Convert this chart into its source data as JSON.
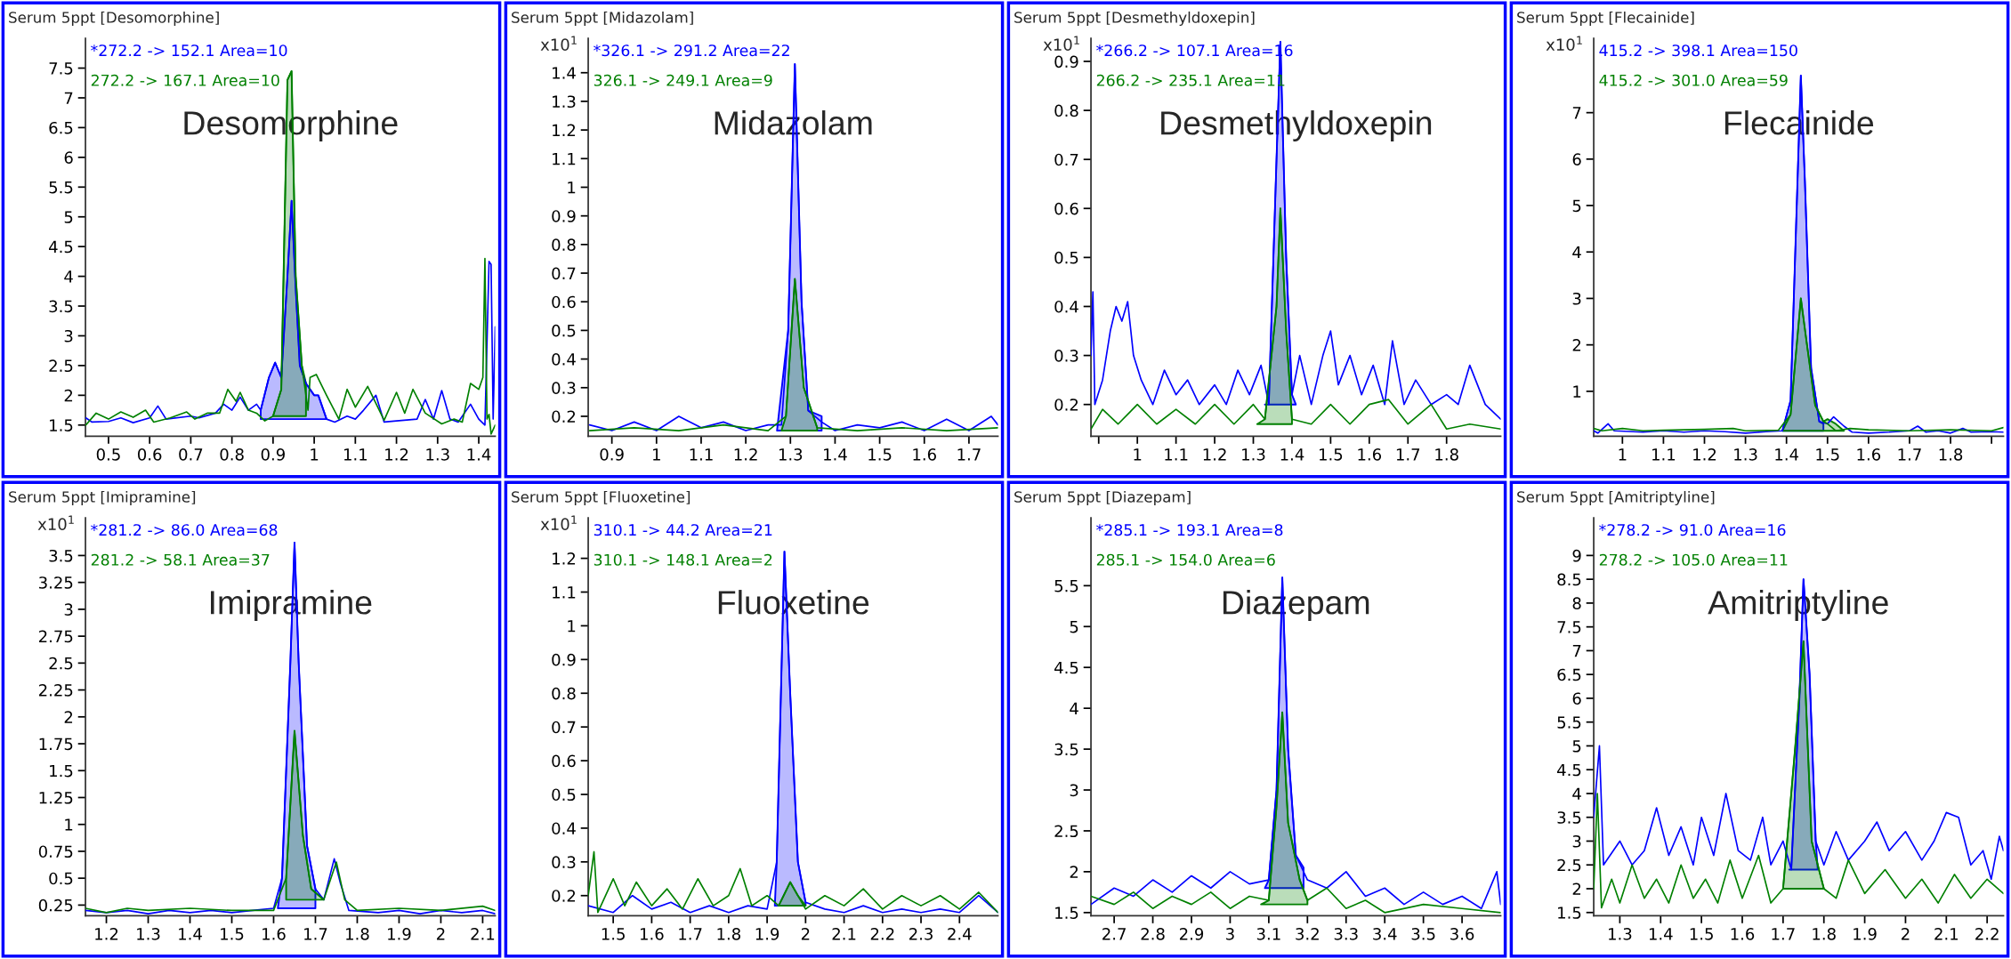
{
  "chart_data": [
    {
      "type": "line",
      "title": "Serum 5ppt [Desomorphine]",
      "legend": "top left",
      "annotations": [
        "Desomorphine"
      ],
      "xlim": [
        0.444,
        1.44
      ],
      "xticks": [
        0.5,
        0.6,
        0.7,
        0.8,
        0.9,
        1,
        1.1,
        1.2,
        1.3,
        1.4
      ],
      "ylim": [
        1.31,
        8.0
      ],
      "yticks": [
        1.5,
        2,
        2.5,
        3,
        3.5,
        4,
        4.5,
        5,
        5.5,
        6,
        6.5,
        7,
        7.5
      ],
      "series": [
        {
          "type": "line",
          "name": "*272.2 -> 152.1 Area=10",
          "color": "#0000ff",
          "x": [
            0.445,
            0.46,
            0.5,
            0.53,
            0.56,
            0.6,
            0.62,
            0.64,
            0.7,
            0.72,
            0.76,
            0.78,
            0.8,
            0.82,
            0.84,
            0.86,
            0.87,
            0.89,
            0.905,
            0.92,
            0.935,
            0.945,
            0.955,
            0.965,
            0.98,
            1.0,
            1.01,
            1.03,
            1.05,
            1.08,
            1.1,
            1.12,
            1.15,
            1.17,
            1.2,
            1.25,
            1.27,
            1.29,
            1.31,
            1.33,
            1.35,
            1.38,
            1.4,
            1.415,
            1.425,
            1.43,
            1.435,
            1.44
          ],
          "values": [
            1.62,
            1.55,
            1.56,
            1.62,
            1.54,
            1.62,
            1.82,
            1.6,
            1.65,
            1.62,
            1.7,
            1.85,
            1.75,
            1.97,
            1.75,
            1.85,
            1.75,
            2.3,
            2.55,
            2.3,
            4.0,
            5.27,
            3.8,
            2.5,
            2.2,
            2.0,
            2.0,
            1.6,
            1.55,
            1.65,
            1.6,
            1.75,
            2.0,
            1.55,
            1.57,
            1.6,
            1.93,
            1.6,
            2.08,
            1.6,
            1.55,
            1.85,
            1.6,
            1.5,
            4.25,
            4.2,
            1.6,
            3.15
          ]
        },
        {
          "type": "line",
          "name": "272.2 -> 167.1 Area=10",
          "color": "#008000",
          "x": [
            0.445,
            0.47,
            0.5,
            0.53,
            0.56,
            0.59,
            0.61,
            0.65,
            0.69,
            0.71,
            0.74,
            0.77,
            0.79,
            0.81,
            0.82,
            0.84,
            0.86,
            0.88,
            0.9,
            0.92,
            0.935,
            0.945,
            0.955,
            0.97,
            0.985,
            0.99,
            1.005,
            1.03,
            1.06,
            1.08,
            1.1,
            1.13,
            1.17,
            1.2,
            1.22,
            1.24,
            1.27,
            1.31,
            1.34,
            1.36,
            1.38,
            1.4,
            1.41,
            1.415,
            1.42,
            1.425,
            1.43,
            1.44
          ],
          "values": [
            1.5,
            1.7,
            1.6,
            1.72,
            1.63,
            1.75,
            1.55,
            1.62,
            1.72,
            1.6,
            1.7,
            1.7,
            2.1,
            1.9,
            2.05,
            1.75,
            1.7,
            1.57,
            1.65,
            2.1,
            7.3,
            7.45,
            4.0,
            2.5,
            1.75,
            2.3,
            2.35,
            2.0,
            1.6,
            2.1,
            1.8,
            2.15,
            1.58,
            2.05,
            1.7,
            2.1,
            1.7,
            1.52,
            1.6,
            1.55,
            2.2,
            2.1,
            2.3,
            4.3,
            1.6,
            1.68,
            1.35,
            1.5
          ]
        },
        {
          "type": "area",
          "color": "#0000ff",
          "x": [
            0.87,
            0.89,
            0.905,
            0.92,
            0.935,
            0.945,
            0.955,
            0.965,
            0.98,
            1.0,
            1.01,
            1.03
          ],
          "values": [
            1.75,
            2.3,
            2.55,
            2.3,
            4.0,
            5.27,
            3.8,
            2.5,
            2.2,
            2.0,
            2.0,
            1.6
          ]
        },
        {
          "type": "area",
          "color": "#008000",
          "x": [
            0.9,
            0.92,
            0.935,
            0.945,
            0.955,
            0.97,
            0.98
          ],
          "values": [
            1.65,
            2.1,
            7.3,
            7.45,
            4.0,
            2.5,
            2.2
          ]
        }
      ]
    },
    {
      "type": "line",
      "title": "Serum 5ppt [Midazolam]",
      "legend": "top left",
      "annotations": [
        "Midazolam",
        "x10$^{1}$"
      ],
      "xlim": [
        0.847,
        1.765
      ],
      "xticks": [
        0.9,
        1,
        1.1,
        1.2,
        1.3,
        1.4,
        1.5,
        1.6,
        1.7
      ],
      "ylim": [
        0.13,
        1.52
      ],
      "yticks": [
        0.2,
        0.3,
        0.4,
        0.5,
        0.6,
        0.7,
        0.8,
        0.9,
        1,
        1.1,
        1.2,
        1.3,
        1.4
      ],
      "series": [
        {
          "type": "line",
          "name": "*326.1 -> 291.2 Area=22",
          "color": "#0000ff",
          "x": [
            0.85,
            0.9,
            0.95,
            1.0,
            1.05,
            1.1,
            1.15,
            1.2,
            1.25,
            1.28,
            1.295,
            1.31,
            1.325,
            1.34,
            1.37,
            1.4,
            1.45,
            1.5,
            1.55,
            1.6,
            1.65,
            1.7,
            1.75,
            1.765
          ],
          "values": [
            0.17,
            0.15,
            0.18,
            0.15,
            0.2,
            0.16,
            0.18,
            0.15,
            0.17,
            0.17,
            0.5,
            1.43,
            0.6,
            0.22,
            0.18,
            0.15,
            0.17,
            0.16,
            0.18,
            0.15,
            0.19,
            0.15,
            0.2,
            0.17
          ]
        },
        {
          "type": "line",
          "name": "326.1 -> 249.1 Area=9",
          "color": "#008000",
          "x": [
            0.85,
            0.95,
            1.05,
            1.15,
            1.25,
            1.29,
            1.31,
            1.33,
            1.36,
            1.45,
            1.55,
            1.65,
            1.765
          ],
          "values": [
            0.15,
            0.16,
            0.15,
            0.17,
            0.15,
            0.2,
            0.68,
            0.3,
            0.16,
            0.15,
            0.16,
            0.15,
            0.16
          ]
        },
        {
          "type": "area",
          "color": "#0000ff",
          "x": [
            1.27,
            1.295,
            1.31,
            1.325,
            1.34,
            1.37
          ],
          "values": [
            0.15,
            0.5,
            1.43,
            0.6,
            0.22,
            0.2
          ]
        },
        {
          "type": "area",
          "color": "#008000",
          "x": [
            1.28,
            1.29,
            1.31,
            1.33,
            1.36
          ],
          "values": [
            0.15,
            0.2,
            0.68,
            0.3,
            0.16
          ]
        }
      ]
    },
    {
      "type": "line",
      "title": "Serum 5ppt [Desmethyldoxepin]",
      "legend": "top left",
      "annotations": [
        "Desmethyldoxepin",
        "x10$^{1}$"
      ],
      "xlim": [
        0.88,
        1.94
      ],
      "xticks": [
        {
          "value": 0.9,
          "label": null
        },
        1,
        1.1,
        1.2,
        1.3,
        1.4,
        1.5,
        1.6,
        1.7,
        1.8
      ],
      "ylim": [
        0.135,
        0.947
      ],
      "yticks": [
        0.2,
        0.3,
        0.4,
        0.5,
        0.6,
        0.7,
        0.8,
        0.9
      ],
      "series": [
        {
          "type": "line",
          "name": "*266.2 -> 107.1 Area=16",
          "color": "#0000ff",
          "x": [
            0.88,
            0.885,
            0.89,
            0.91,
            0.93,
            0.945,
            0.96,
            0.975,
            0.99,
            1.01,
            1.04,
            1.07,
            1.1,
            1.13,
            1.16,
            1.2,
            1.23,
            1.26,
            1.29,
            1.32,
            1.34,
            1.36,
            1.37,
            1.385,
            1.4,
            1.42,
            1.45,
            1.48,
            1.5,
            1.52,
            1.55,
            1.58,
            1.61,
            1.64,
            1.66,
            1.69,
            1.72,
            1.76,
            1.8,
            1.83,
            1.86,
            1.9,
            1.94
          ],
          "values": [
            0.3,
            0.43,
            0.2,
            0.25,
            0.35,
            0.4,
            0.37,
            0.41,
            0.3,
            0.25,
            0.2,
            0.27,
            0.22,
            0.25,
            0.2,
            0.24,
            0.2,
            0.27,
            0.22,
            0.28,
            0.2,
            0.7,
            0.94,
            0.5,
            0.22,
            0.3,
            0.2,
            0.3,
            0.35,
            0.24,
            0.3,
            0.22,
            0.28,
            0.2,
            0.33,
            0.2,
            0.25,
            0.2,
            0.22,
            0.2,
            0.28,
            0.2,
            0.17
          ]
        },
        {
          "type": "line",
          "name": "266.2 -> 235.1 Area=11",
          "color": "#008000",
          "x": [
            0.88,
            0.91,
            0.95,
            1.0,
            1.05,
            1.1,
            1.15,
            1.2,
            1.25,
            1.3,
            1.33,
            1.36,
            1.37,
            1.385,
            1.4,
            1.45,
            1.5,
            1.55,
            1.6,
            1.65,
            1.7,
            1.76,
            1.8,
            1.86,
            1.94
          ],
          "values": [
            0.15,
            0.19,
            0.16,
            0.2,
            0.16,
            0.19,
            0.16,
            0.2,
            0.16,
            0.2,
            0.17,
            0.4,
            0.6,
            0.35,
            0.17,
            0.16,
            0.2,
            0.16,
            0.2,
            0.21,
            0.16,
            0.2,
            0.15,
            0.16,
            0.15
          ]
        },
        {
          "type": "area",
          "color": "#0000ff",
          "x": [
            1.33,
            1.34,
            1.36,
            1.37,
            1.385,
            1.4,
            1.41
          ],
          "values": [
            0.2,
            0.2,
            0.7,
            0.94,
            0.5,
            0.22,
            0.2
          ]
        },
        {
          "type": "area",
          "color": "#008000",
          "x": [
            1.31,
            1.33,
            1.36,
            1.37,
            1.385,
            1.4
          ],
          "values": [
            0.16,
            0.17,
            0.4,
            0.6,
            0.35,
            0.17
          ]
        }
      ]
    },
    {
      "type": "line",
      "title": "Serum 5ppt [Flecainide]",
      "legend": "top left",
      "annotations": [
        "Flecainide",
        "x10$^{1}$"
      ],
      "xlim": [
        0.93,
        1.929
      ],
      "xticks": [
        1,
        1.1,
        1.2,
        1.3,
        1.4,
        1.5,
        1.6,
        1.7,
        1.8,
        {
          "value": 1.9,
          "label": null
        }
      ],
      "ylim": [
        0.03,
        8.6
      ],
      "yticks": [
        1,
        2,
        3,
        4,
        5,
        6,
        7
      ],
      "series": [
        {
          "type": "line",
          "name": "415.2 -> 398.1 Area=150",
          "color": "#0000ff",
          "x": [
            0.93,
            0.94,
            0.965,
            0.98,
            1.05,
            1.1,
            1.15,
            1.2,
            1.25,
            1.3,
            1.35,
            1.39,
            1.41,
            1.425,
            1.435,
            1.445,
            1.46,
            1.48,
            1.5,
            1.515,
            1.54,
            1.56,
            1.6,
            1.65,
            1.7,
            1.72,
            1.74,
            1.77,
            1.8,
            1.83,
            1.85,
            1.9,
            1.929
          ],
          "values": [
            0.15,
            0.1,
            0.3,
            0.15,
            0.12,
            0.15,
            0.12,
            0.15,
            0.13,
            0.1,
            0.13,
            0.15,
            0.8,
            5.0,
            7.8,
            5.5,
            1.5,
            0.35,
            0.3,
            0.45,
            0.25,
            0.12,
            0.1,
            0.12,
            0.15,
            0.25,
            0.12,
            0.15,
            0.1,
            0.2,
            0.12,
            0.13,
            0.12
          ]
        },
        {
          "type": "line",
          "name": "415.2 -> 301.0 Area=59",
          "color": "#008000",
          "x": [
            0.93,
            0.95,
            1.0,
            1.05,
            1.1,
            1.2,
            1.27,
            1.3,
            1.38,
            1.41,
            1.435,
            1.45,
            1.47,
            1.49,
            1.5,
            1.52,
            1.555,
            1.6,
            1.7,
            1.8,
            1.9,
            1.929
          ],
          "values": [
            0.2,
            0.15,
            0.2,
            0.15,
            0.16,
            0.18,
            0.2,
            0.15,
            0.16,
            0.5,
            3.0,
            2.0,
            0.7,
            0.35,
            0.3,
            0.15,
            0.2,
            0.17,
            0.15,
            0.17,
            0.15,
            0.22
          ]
        },
        {
          "type": "area",
          "color": "#0000ff",
          "x": [
            1.39,
            1.41,
            1.425,
            1.435,
            1.445,
            1.46,
            1.48,
            1.49
          ],
          "values": [
            0.15,
            0.8,
            5.0,
            7.8,
            5.5,
            1.5,
            0.35,
            0.3
          ]
        },
        {
          "type": "area",
          "color": "#008000",
          "x": [
            1.39,
            1.41,
            1.435,
            1.45,
            1.47,
            1.49,
            1.5,
            1.52,
            1.54
          ],
          "values": [
            0.15,
            0.5,
            3.0,
            2.0,
            0.7,
            0.35,
            0.4,
            0.3,
            0.15
          ]
        }
      ]
    },
    {
      "type": "line",
      "title": "Serum 5ppt [Imipramine]",
      "legend": "top left",
      "annotations": [
        "Imipramine",
        "x10$^{1}$"
      ],
      "xlim": [
        1.15,
        2.13
      ],
      "xticks": [
        1.2,
        1.3,
        1.4,
        1.5,
        1.6,
        1.7,
        1.8,
        1.9,
        2,
        2.1
      ],
      "ylim": [
        0.15,
        3.85
      ],
      "yticks": [
        0.25,
        0.5,
        0.75,
        1,
        1.25,
        1.5,
        1.75,
        2,
        2.25,
        2.5,
        2.75,
        3,
        3.25,
        3.5
      ],
      "series": [
        {
          "type": "line",
          "name": "*281.2 -> 86.0 Area=68",
          "color": "#0000ff",
          "x": [
            1.15,
            1.2,
            1.25,
            1.3,
            1.35,
            1.4,
            1.45,
            1.5,
            1.55,
            1.6,
            1.62,
            1.64,
            1.65,
            1.66,
            1.68,
            1.7,
            1.72,
            1.745,
            1.76,
            1.78,
            1.85,
            1.9,
            1.95,
            2.0,
            2.05,
            2.1,
            2.13
          ],
          "values": [
            0.2,
            0.18,
            0.2,
            0.17,
            0.2,
            0.18,
            0.2,
            0.18,
            0.2,
            0.22,
            0.5,
            2.5,
            3.62,
            2.5,
            0.8,
            0.4,
            0.3,
            0.68,
            0.45,
            0.2,
            0.18,
            0.2,
            0.17,
            0.2,
            0.18,
            0.2,
            0.17
          ]
        },
        {
          "type": "line",
          "name": "281.2 -> 58.1 Area=37",
          "color": "#008000",
          "x": [
            1.15,
            1.2,
            1.25,
            1.3,
            1.4,
            1.5,
            1.6,
            1.63,
            1.65,
            1.67,
            1.69,
            1.72,
            1.75,
            1.77,
            1.8,
            1.9,
            2.0,
            2.1,
            2.13
          ],
          "values": [
            0.22,
            0.18,
            0.22,
            0.2,
            0.22,
            0.2,
            0.2,
            0.5,
            1.87,
            0.9,
            0.4,
            0.3,
            0.65,
            0.3,
            0.2,
            0.22,
            0.2,
            0.24,
            0.2
          ]
        },
        {
          "type": "area",
          "color": "#0000ff",
          "x": [
            1.61,
            1.62,
            1.64,
            1.65,
            1.66,
            1.68,
            1.7
          ],
          "values": [
            0.22,
            0.5,
            2.5,
            3.62,
            2.5,
            0.8,
            0.4
          ]
        },
        {
          "type": "area",
          "color": "#008000",
          "x": [
            1.63,
            1.65,
            1.67,
            1.69,
            1.72
          ],
          "values": [
            0.5,
            1.87,
            0.9,
            0.4,
            0.3
          ]
        }
      ]
    },
    {
      "type": "line",
      "title": "Serum 5ppt [Fluoxetine]",
      "legend": "top left",
      "annotations": [
        "Fluoxetine",
        "x10$^{1}$"
      ],
      "xlim": [
        1.435,
        2.5
      ],
      "xticks": [
        1.5,
        1.6,
        1.7,
        1.8,
        1.9,
        2,
        2.1,
        2.2,
        2.3,
        2.4
      ],
      "ylim": [
        0.14,
        1.32
      ],
      "yticks": [
        0.2,
        0.3,
        0.4,
        0.5,
        0.6,
        0.7,
        0.8,
        0.9,
        1,
        1.1,
        1.2
      ],
      "series": [
        {
          "type": "line",
          "name": "310.1 -> 44.2 Area=21",
          "color": "#0000ff",
          "x": [
            1.435,
            1.5,
            1.55,
            1.6,
            1.65,
            1.7,
            1.75,
            1.8,
            1.85,
            1.9,
            1.925,
            1.945,
            1.96,
            1.98,
            2.0,
            2.05,
            2.1,
            2.15,
            2.2,
            2.25,
            2.3,
            2.35,
            2.4,
            2.45,
            2.5
          ],
          "values": [
            0.17,
            0.15,
            0.2,
            0.16,
            0.18,
            0.15,
            0.17,
            0.15,
            0.17,
            0.16,
            0.3,
            1.22,
            0.8,
            0.3,
            0.18,
            0.16,
            0.15,
            0.17,
            0.15,
            0.16,
            0.15,
            0.16,
            0.15,
            0.2,
            0.15
          ]
        },
        {
          "type": "line",
          "name": "310.1 -> 148.1 Area=2",
          "color": "#008000",
          "x": [
            1.435,
            1.45,
            1.46,
            1.5,
            1.53,
            1.56,
            1.6,
            1.64,
            1.68,
            1.72,
            1.76,
            1.8,
            1.83,
            1.86,
            1.9,
            1.93,
            1.96,
            1.98,
            2.0,
            2.05,
            2.1,
            2.15,
            2.2,
            2.25,
            2.3,
            2.35,
            2.4,
            2.45,
            2.5
          ],
          "values": [
            0.2,
            0.33,
            0.15,
            0.25,
            0.17,
            0.24,
            0.17,
            0.22,
            0.16,
            0.25,
            0.17,
            0.2,
            0.28,
            0.17,
            0.2,
            0.17,
            0.24,
            0.2,
            0.16,
            0.2,
            0.17,
            0.22,
            0.16,
            0.2,
            0.17,
            0.2,
            0.16,
            0.21,
            0.15
          ]
        },
        {
          "type": "area",
          "color": "#0000ff",
          "x": [
            1.92,
            1.925,
            1.945,
            1.96,
            1.98,
            2.0
          ],
          "values": [
            0.17,
            0.3,
            1.22,
            0.8,
            0.3,
            0.18
          ]
        },
        {
          "type": "area",
          "color": "#008000",
          "x": [
            1.93,
            1.96,
            1.98,
            2.0
          ],
          "values": [
            0.17,
            0.24,
            0.2,
            0.17
          ]
        }
      ]
    },
    {
      "type": "line",
      "title": "Serum 5ppt [Diazepam]",
      "legend": "top left",
      "annotations": [
        "Diazepam"
      ],
      "xlim": [
        2.64,
        3.7
      ],
      "xticks": [
        2.7,
        2.8,
        2.9,
        3,
        3.1,
        3.2,
        3.3,
        3.4,
        3.5,
        3.6
      ],
      "ylim": [
        1.46,
        6.33
      ],
      "yticks": [
        1.5,
        2,
        2.5,
        3,
        3.5,
        4,
        4.5,
        5,
        5.5
      ],
      "series": [
        {
          "type": "line",
          "name": "*285.1 -> 193.1 Area=8",
          "color": "#0000ff",
          "x": [
            2.64,
            2.7,
            2.75,
            2.8,
            2.85,
            2.9,
            2.95,
            3.0,
            3.05,
            3.1,
            3.12,
            3.135,
            3.15,
            3.17,
            3.2,
            3.25,
            3.3,
            3.35,
            3.4,
            3.45,
            3.5,
            3.55,
            3.6,
            3.65,
            3.69,
            3.7
          ],
          "values": [
            1.6,
            1.8,
            1.7,
            1.9,
            1.75,
            1.95,
            1.8,
            2.0,
            1.85,
            1.9,
            3.0,
            5.6,
            3.5,
            2.2,
            1.9,
            1.8,
            2.0,
            1.7,
            1.8,
            1.6,
            1.75,
            1.6,
            1.7,
            1.55,
            2.0,
            1.6
          ]
        },
        {
          "type": "line",
          "name": "285.1 -> 154.0 Area=6",
          "color": "#008000",
          "x": [
            2.64,
            2.7,
            2.75,
            2.8,
            2.85,
            2.9,
            2.95,
            3.0,
            3.05,
            3.1,
            3.12,
            3.135,
            3.15,
            3.18,
            3.2,
            3.25,
            3.3,
            3.35,
            3.4,
            3.5,
            3.6,
            3.7
          ],
          "values": [
            1.7,
            1.6,
            1.75,
            1.55,
            1.7,
            1.6,
            1.75,
            1.55,
            1.7,
            1.65,
            2.8,
            3.95,
            2.6,
            1.9,
            1.65,
            1.8,
            1.55,
            1.65,
            1.5,
            1.6,
            1.55,
            1.5
          ]
        },
        {
          "type": "area",
          "color": "#0000ff",
          "x": [
            3.09,
            3.1,
            3.12,
            3.135,
            3.15,
            3.17,
            3.19
          ],
          "values": [
            1.8,
            1.9,
            3.0,
            5.6,
            3.5,
            2.2,
            2.05
          ]
        },
        {
          "type": "area",
          "color": "#008000",
          "x": [
            3.08,
            3.1,
            3.12,
            3.135,
            3.15,
            3.18,
            3.2
          ],
          "values": [
            1.6,
            1.65,
            2.8,
            3.95,
            2.6,
            1.9,
            1.65
          ]
        }
      ]
    },
    {
      "type": "line",
      "title": "Serum 5ppt [Amitriptyline]",
      "legend": "top left",
      "annotations": [
        "Amitriptyline"
      ],
      "xlim": [
        1.236,
        2.24
      ],
      "xticks": [
        1.3,
        1.4,
        1.5,
        1.6,
        1.7,
        1.8,
        1.9,
        2,
        2.1,
        2.2
      ],
      "ylim": [
        1.43,
        9.79
      ],
      "yticks": [
        1.5,
        2,
        2.5,
        3,
        3.5,
        4,
        4.5,
        5,
        5.5,
        6,
        6.5,
        7,
        7.5,
        8,
        8.5,
        9
      ],
      "series": [
        {
          "type": "line",
          "name": "*278.2 -> 91.0 Area=16",
          "color": "#0000ff",
          "x": [
            1.236,
            1.25,
            1.26,
            1.3,
            1.33,
            1.36,
            1.39,
            1.42,
            1.45,
            1.48,
            1.5,
            1.53,
            1.56,
            1.59,
            1.62,
            1.65,
            1.67,
            1.7,
            1.72,
            1.74,
            1.75,
            1.765,
            1.78,
            1.8,
            1.83,
            1.86,
            1.9,
            1.93,
            1.96,
            2.0,
            2.04,
            2.07,
            2.1,
            2.13,
            2.16,
            2.19,
            2.21,
            2.23,
            2.24
          ],
          "values": [
            3.5,
            5.0,
            2.5,
            3.0,
            2.5,
            2.8,
            3.7,
            2.7,
            3.3,
            2.5,
            3.5,
            2.7,
            4.0,
            2.8,
            2.6,
            3.5,
            2.5,
            3.0,
            2.4,
            6.0,
            8.5,
            6.5,
            3.0,
            2.5,
            3.2,
            2.6,
            3.0,
            3.4,
            2.8,
            3.2,
            2.6,
            3.0,
            3.6,
            3.5,
            2.5,
            2.8,
            2.2,
            3.1,
            2.8
          ]
        },
        {
          "type": "line",
          "name": "278.2 -> 105.0 Area=11",
          "color": "#008000",
          "x": [
            1.236,
            1.245,
            1.255,
            1.28,
            1.3,
            1.33,
            1.36,
            1.39,
            1.42,
            1.45,
            1.48,
            1.51,
            1.54,
            1.57,
            1.6,
            1.64,
            1.67,
            1.7,
            1.73,
            1.75,
            1.77,
            1.8,
            1.83,
            1.86,
            1.9,
            1.95,
            2.0,
            2.04,
            2.08,
            2.12,
            2.16,
            2.2,
            2.24
          ],
          "values": [
            2.0,
            4.0,
            1.6,
            2.2,
            1.7,
            2.5,
            1.8,
            2.2,
            1.7,
            2.5,
            1.8,
            2.2,
            1.7,
            2.6,
            1.8,
            2.7,
            1.7,
            2.0,
            5.0,
            7.2,
            3.0,
            2.0,
            1.8,
            2.6,
            1.9,
            2.4,
            1.8,
            2.2,
            1.7,
            2.3,
            1.8,
            2.2,
            1.9
          ]
        },
        {
          "type": "area",
          "color": "#0000ff",
          "x": [
            1.715,
            1.72,
            1.74,
            1.75,
            1.765,
            1.78,
            1.785
          ],
          "values": [
            2.4,
            2.4,
            6.0,
            8.5,
            6.5,
            3.0,
            2.4
          ]
        },
        {
          "type": "area",
          "color": "#008000",
          "x": [
            1.7,
            1.73,
            1.75,
            1.77,
            1.8
          ],
          "values": [
            2.0,
            5.0,
            7.2,
            3.0,
            2.0
          ]
        }
      ]
    }
  ]
}
